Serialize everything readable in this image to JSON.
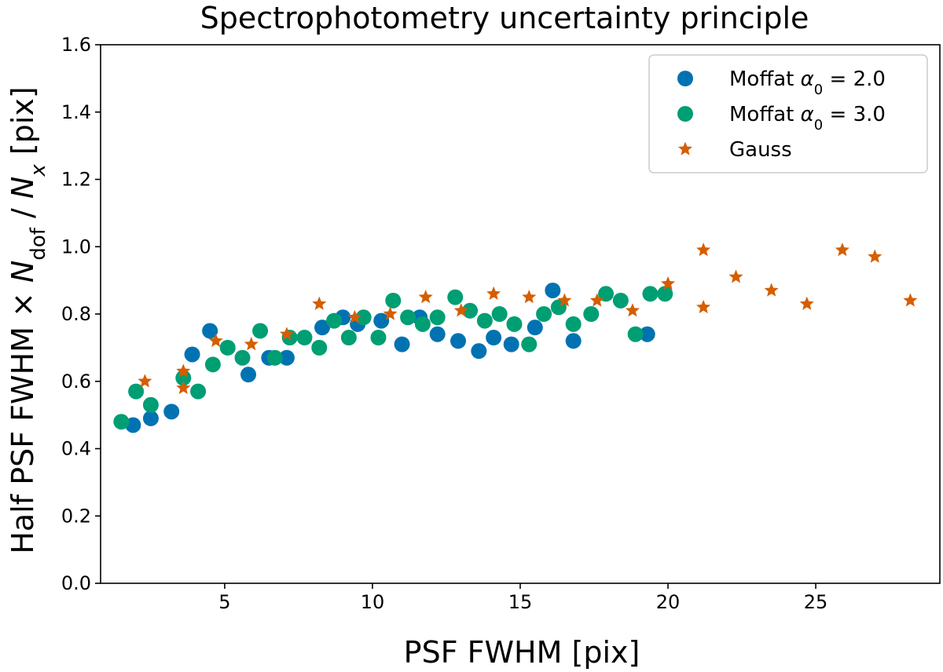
{
  "chart_data": {
    "type": "scatter",
    "title": "Spectrophotometry uncertainty principle",
    "xlabel": "PSF FWHM [pix]",
    "ylabel": "Half PSF FWHM × N_dof / N_x [pix]",
    "ylabel_parts": {
      "prefix": "Half PSF FWHM × ",
      "n1": "N",
      "sub1": "dof",
      "mid": " / ",
      "n2": "N",
      "sub2": "x",
      "suffix": " [pix]"
    },
    "xlim": [
      0.8,
      29.2
    ],
    "ylim": [
      0.0,
      1.6
    ],
    "xticks": [
      5,
      10,
      15,
      20,
      25
    ],
    "yticks": [
      0.0,
      0.2,
      0.4,
      0.6,
      0.8,
      1.0,
      1.2,
      1.4,
      1.6
    ],
    "grid": false,
    "legend_position": "top-right",
    "series": [
      {
        "name": "Moffat α₀ = 2.0",
        "legend": {
          "prefix": "Moffat ",
          "sym": "α",
          "sub": "0",
          "suffix": " = 2.0"
        },
        "marker": "circle",
        "color": "#0072B2",
        "points": [
          [
            1.9,
            0.47
          ],
          [
            2.5,
            0.49
          ],
          [
            3.2,
            0.51
          ],
          [
            3.9,
            0.68
          ],
          [
            4.5,
            0.75
          ],
          [
            5.8,
            0.62
          ],
          [
            6.5,
            0.67
          ],
          [
            7.1,
            0.67
          ],
          [
            8.3,
            0.76
          ],
          [
            9.0,
            0.79
          ],
          [
            9.5,
            0.77
          ],
          [
            10.3,
            0.78
          ],
          [
            11.0,
            0.71
          ],
          [
            11.6,
            0.79
          ],
          [
            12.2,
            0.74
          ],
          [
            12.9,
            0.72
          ],
          [
            13.6,
            0.69
          ],
          [
            14.1,
            0.73
          ],
          [
            14.7,
            0.71
          ],
          [
            15.5,
            0.76
          ],
          [
            16.1,
            0.87
          ],
          [
            16.8,
            0.72
          ],
          [
            19.3,
            0.74
          ]
        ]
      },
      {
        "name": "Moffat α₀ = 3.0",
        "legend": {
          "prefix": "Moffat ",
          "sym": "α",
          "sub": "0",
          "suffix": " = 3.0"
        },
        "marker": "circle",
        "color": "#009E73",
        "points": [
          [
            1.5,
            0.48
          ],
          [
            2.0,
            0.57
          ],
          [
            2.5,
            0.53
          ],
          [
            3.6,
            0.61
          ],
          [
            4.1,
            0.57
          ],
          [
            4.6,
            0.65
          ],
          [
            5.1,
            0.7
          ],
          [
            5.6,
            0.67
          ],
          [
            6.2,
            0.75
          ],
          [
            6.7,
            0.67
          ],
          [
            7.2,
            0.73
          ],
          [
            7.7,
            0.73
          ],
          [
            8.2,
            0.7
          ],
          [
            8.7,
            0.78
          ],
          [
            9.2,
            0.73
          ],
          [
            9.7,
            0.79
          ],
          [
            10.2,
            0.73
          ],
          [
            10.7,
            0.84
          ],
          [
            11.2,
            0.79
          ],
          [
            11.7,
            0.77
          ],
          [
            12.2,
            0.79
          ],
          [
            12.8,
            0.85
          ],
          [
            13.3,
            0.81
          ],
          [
            13.8,
            0.78
          ],
          [
            14.3,
            0.8
          ],
          [
            14.8,
            0.77
          ],
          [
            15.3,
            0.71
          ],
          [
            15.8,
            0.8
          ],
          [
            16.3,
            0.82
          ],
          [
            16.8,
            0.77
          ],
          [
            17.4,
            0.8
          ],
          [
            17.9,
            0.86
          ],
          [
            18.4,
            0.84
          ],
          [
            18.9,
            0.74
          ],
          [
            19.4,
            0.86
          ],
          [
            19.9,
            0.86
          ]
        ]
      },
      {
        "name": "Gauss",
        "legend": {
          "prefix": "Gauss",
          "sym": "",
          "sub": "",
          "suffix": ""
        },
        "marker": "star",
        "color": "#D55E00",
        "points": [
          [
            2.3,
            0.6
          ],
          [
            3.6,
            0.58
          ],
          [
            3.6,
            0.63
          ],
          [
            4.7,
            0.72
          ],
          [
            5.9,
            0.71
          ],
          [
            7.1,
            0.74
          ],
          [
            8.2,
            0.83
          ],
          [
            9.4,
            0.79
          ],
          [
            10.6,
            0.8
          ],
          [
            11.8,
            0.85
          ],
          [
            13.0,
            0.81
          ],
          [
            14.1,
            0.86
          ],
          [
            15.3,
            0.85
          ],
          [
            16.5,
            0.84
          ],
          [
            17.6,
            0.84
          ],
          [
            18.8,
            0.81
          ],
          [
            20.0,
            0.89
          ],
          [
            21.2,
            0.82
          ],
          [
            21.2,
            0.99
          ],
          [
            22.3,
            0.91
          ],
          [
            23.5,
            0.87
          ],
          [
            24.7,
            0.83
          ],
          [
            25.9,
            0.99
          ],
          [
            27.0,
            0.97
          ],
          [
            28.2,
            0.84
          ]
        ]
      }
    ]
  }
}
